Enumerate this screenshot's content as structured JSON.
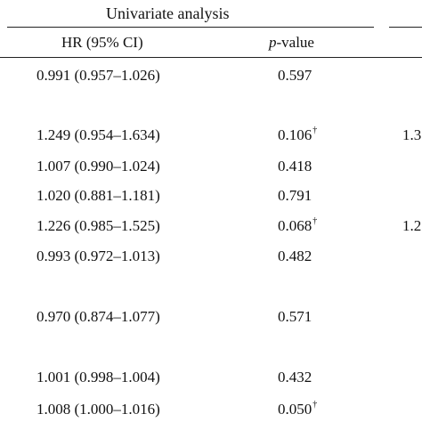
{
  "header": {
    "group_label": "Univariate analysis",
    "col_hr": "HR (95% CI)",
    "col_p_italic": "p",
    "col_p_rest": "-value"
  },
  "rows": [
    {
      "hr": "0.991 (0.957–1.026)",
      "p": "0.597",
      "sup": "",
      "clip": ""
    },
    {
      "hr": "1.249 (0.954–1.634)",
      "p": "0.106",
      "sup": "†",
      "clip": "1.3"
    },
    {
      "hr": "1.007 (0.990–1.024)",
      "p": "0.418",
      "sup": "",
      "clip": ""
    },
    {
      "hr": "1.020 (0.881–1.181)",
      "p": "0.791",
      "sup": "",
      "clip": ""
    },
    {
      "hr": "1.226 (0.985–1.525)",
      "p": "0.068",
      "sup": "†",
      "clip": "1.2"
    },
    {
      "hr": "0.993 (0.972–1.013)",
      "p": "0.482",
      "sup": "",
      "clip": ""
    },
    {
      "hr": "0.970 (0.874–1.077)",
      "p": "0.571",
      "sup": "",
      "clip": ""
    },
    {
      "hr": "1.001 (0.998–1.004)",
      "p": "0.432",
      "sup": "",
      "clip": ""
    },
    {
      "hr": "1.008 (1.000–1.016)",
      "p": "0.050",
      "sup": "†",
      "clip": ""
    }
  ]
}
